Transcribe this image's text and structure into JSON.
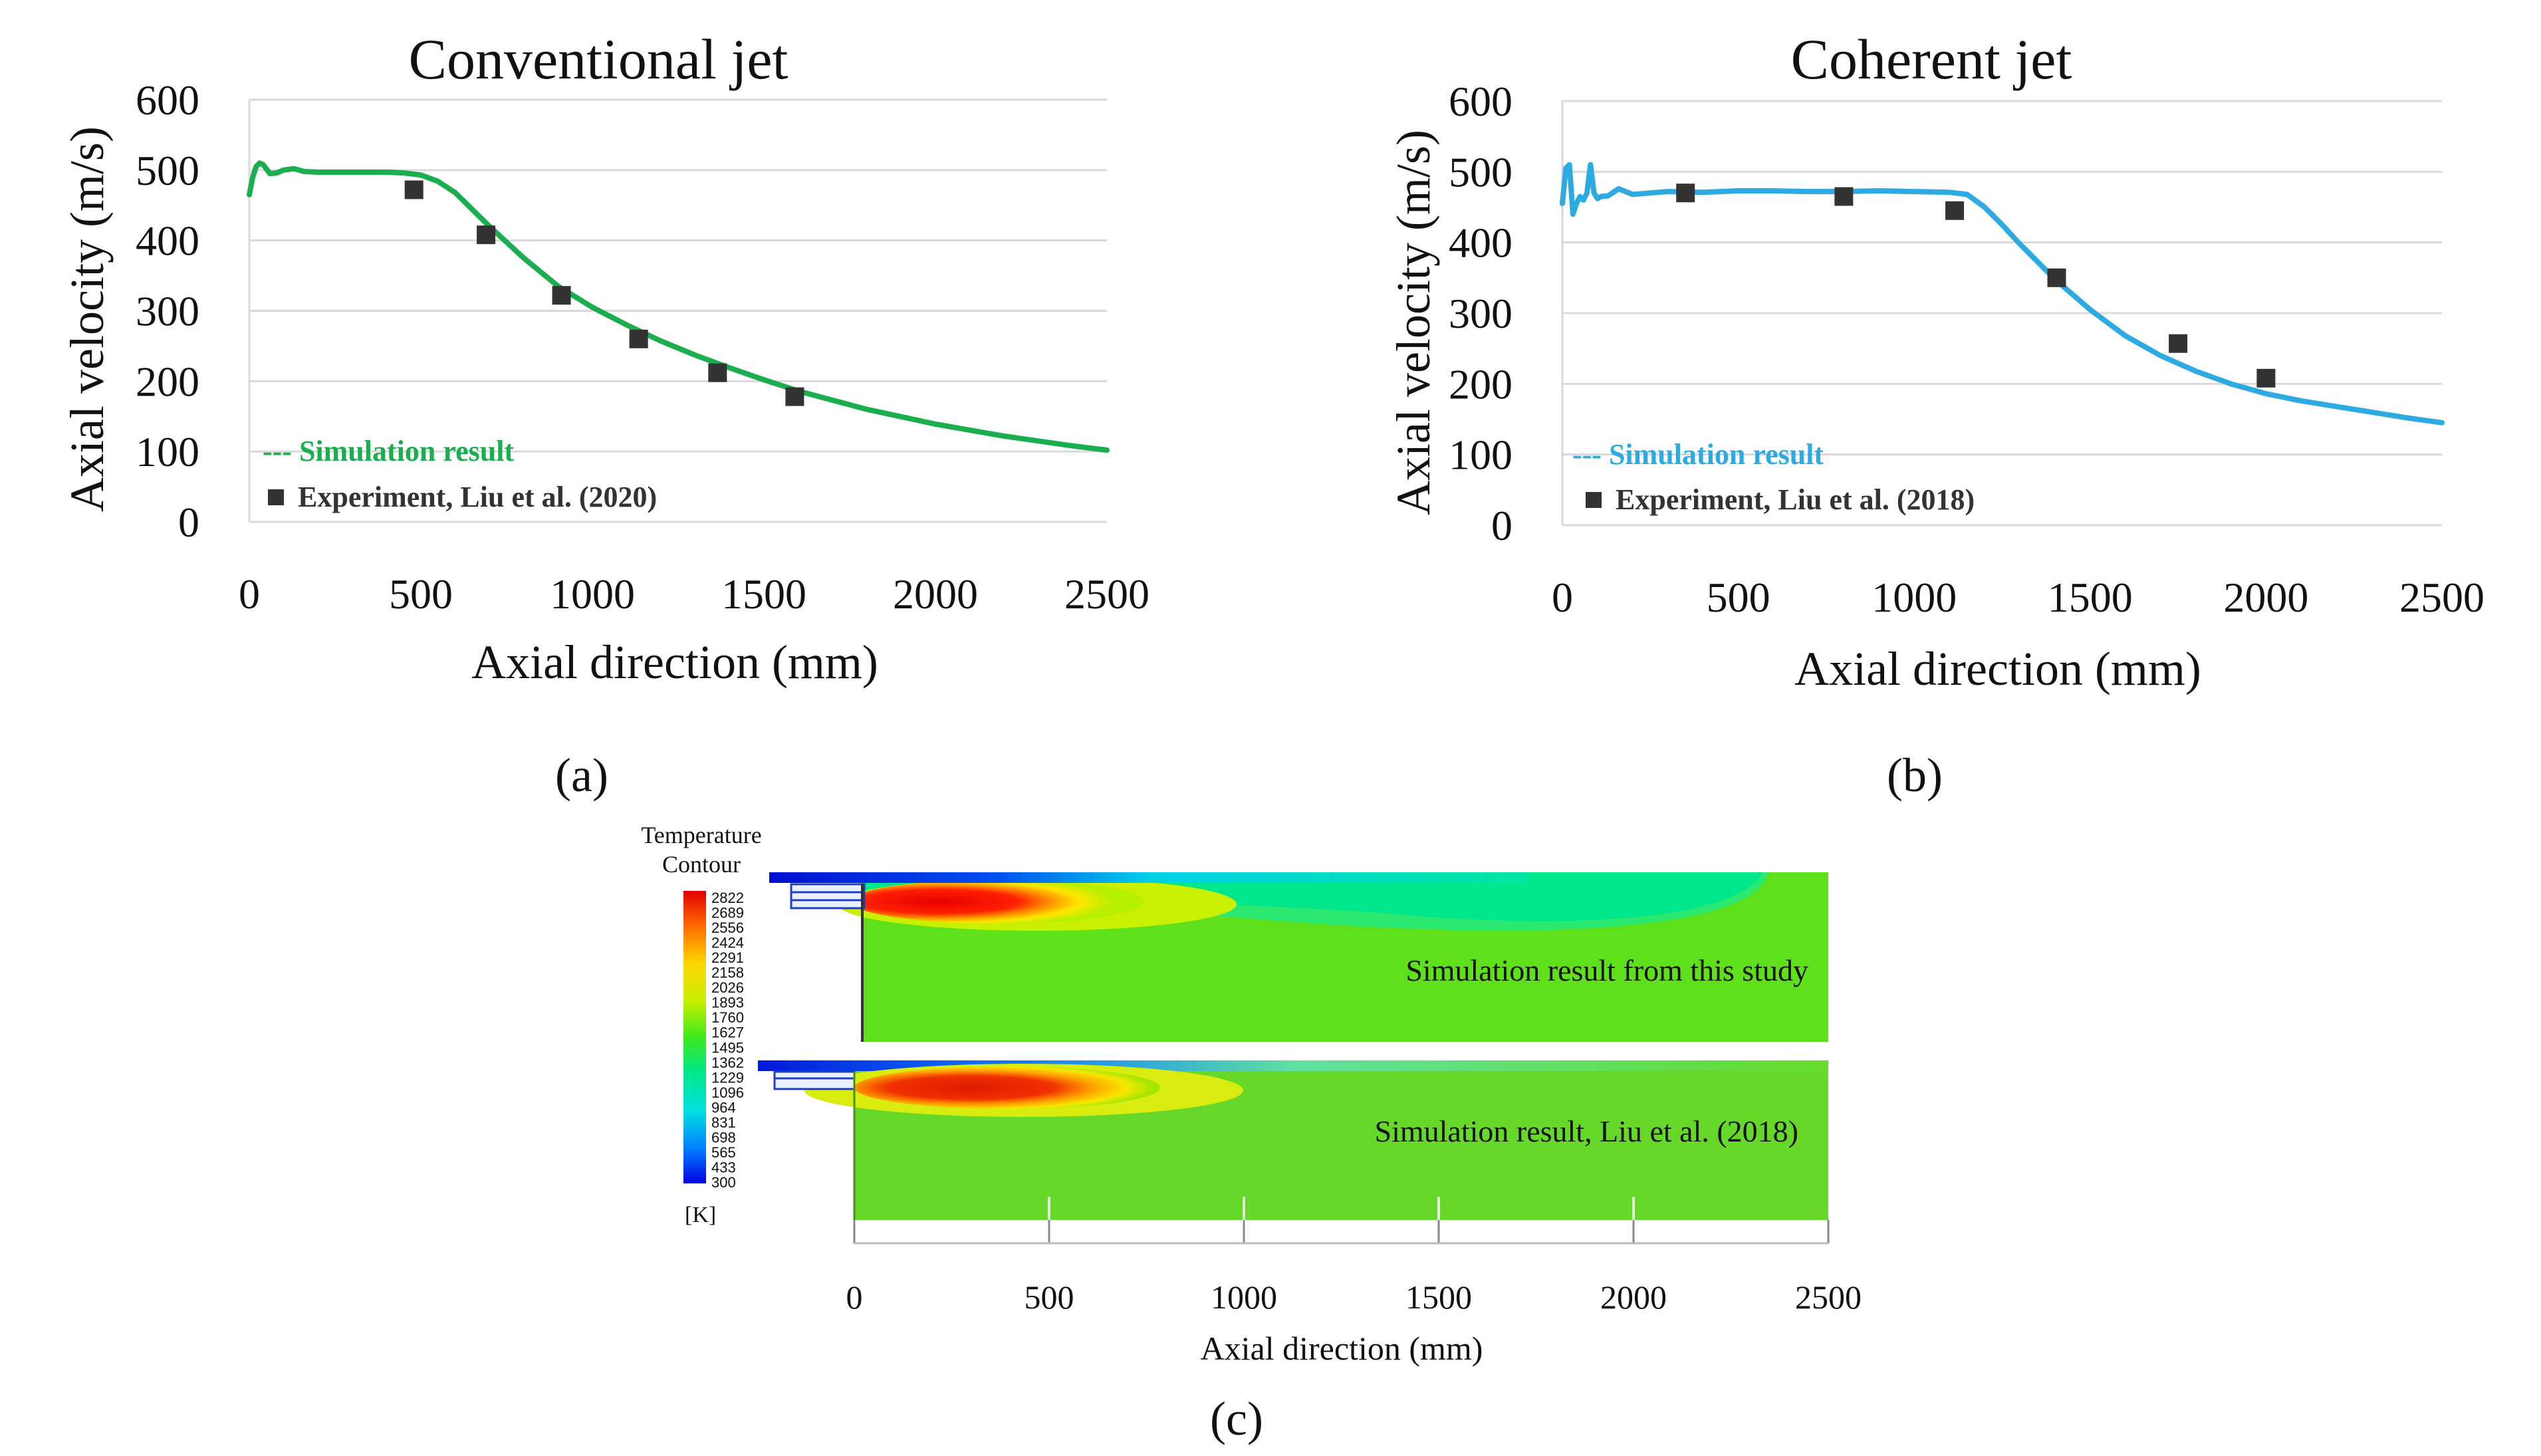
{
  "panel_labels": {
    "a": "(a)",
    "b": "(b)",
    "c": "(c)"
  },
  "chart_data": [
    {
      "id": "a",
      "type": "line",
      "title": "Conventional jet",
      "xlabel": "Axial direction (mm)",
      "ylabel": "Axial velocity (m/s)",
      "xlim": [
        0,
        2500
      ],
      "ylim": [
        0,
        600
      ],
      "xticks": [
        "0",
        "500",
        "1000",
        "1500",
        "2000",
        "2500"
      ],
      "yticks": [
        "0",
        "100",
        "200",
        "300",
        "400",
        "500",
        "600"
      ],
      "grid": "horizontal",
      "legend_placement": "bottom-left",
      "series": [
        {
          "name": "--- Simulation result",
          "kind": "line",
          "color": "#1aae4e",
          "x": [
            0,
            10,
            20,
            30,
            40,
            60,
            80,
            100,
            130,
            160,
            200,
            300,
            400,
            450,
            500,
            550,
            600,
            700,
            800,
            900,
            1000,
            1100,
            1200,
            1300,
            1400,
            1500,
            1600,
            1800,
            2000,
            2200,
            2400,
            2500
          ],
          "y": [
            465,
            490,
            505,
            510,
            508,
            495,
            496,
            500,
            502,
            498,
            497,
            497,
            497,
            496,
            493,
            484,
            468,
            420,
            375,
            335,
            305,
            280,
            257,
            237,
            219,
            202,
            186,
            160,
            139,
            122,
            108,
            102
          ]
        },
        {
          "name": "Experiment, Liu et al. (2020)",
          "kind": "marker",
          "color": "#333333",
          "x": [
            480,
            690,
            910,
            1135,
            1365,
            1590
          ],
          "y": [
            472,
            408,
            322,
            260,
            212,
            178
          ]
        }
      ]
    },
    {
      "id": "b",
      "type": "line",
      "title": "Coherent jet",
      "xlabel": "Axial direction (mm)",
      "ylabel": "Axial velocity (m/s)",
      "xlim": [
        0,
        2500
      ],
      "ylim": [
        0,
        600
      ],
      "xticks": [
        "0",
        "500",
        "1000",
        "1500",
        "2000",
        "2500"
      ],
      "yticks": [
        "0",
        "100",
        "200",
        "300",
        "400",
        "500",
        "600"
      ],
      "grid": "horizontal",
      "legend_placement": "bottom-left",
      "series": [
        {
          "name": "--- Simulation result",
          "kind": "line",
          "color": "#2eaae2",
          "x": [
            0,
            10,
            20,
            30,
            40,
            50,
            60,
            70,
            80,
            90,
            100,
            110,
            130,
            160,
            200,
            250,
            300,
            400,
            500,
            600,
            700,
            800,
            900,
            1000,
            1100,
            1150,
            1200,
            1250,
            1300,
            1400,
            1500,
            1600,
            1700,
            1800,
            1900,
            2000,
            2100,
            2200,
            2300,
            2400,
            2500
          ],
          "y": [
            455,
            505,
            510,
            440,
            455,
            465,
            460,
            470,
            510,
            470,
            462,
            465,
            466,
            476,
            468,
            470,
            472,
            471,
            473,
            473,
            472,
            472,
            473,
            472,
            471,
            468,
            450,
            425,
            398,
            348,
            305,
            268,
            240,
            218,
            200,
            186,
            176,
            168,
            160,
            152,
            145
          ]
        },
        {
          "name": "Experiment, Liu et al. (2018)",
          "kind": "marker",
          "color": "#333333",
          "x": [
            350,
            800,
            1115,
            1405,
            1750,
            2000
          ],
          "y": [
            470,
            465,
            445,
            350,
            257,
            208
          ]
        }
      ]
    },
    {
      "id": "c",
      "type": "heatmap",
      "xlabel": "Axial direction (mm)",
      "xlim": [
        0,
        2500
      ],
      "xticks": [
        "0",
        "500",
        "1000",
        "1500",
        "2000",
        "2500"
      ],
      "colorbar": {
        "title_line1": "Temperature",
        "title_line2": "Contour",
        "unit": "[K]",
        "levels": [
          "2822",
          "2689",
          "2556",
          "2424",
          "2291",
          "2158",
          "2026",
          "1893",
          "1760",
          "1627",
          "1495",
          "1362",
          "1229",
          "1096",
          "964",
          "831",
          "698",
          "565",
          "433",
          "300"
        ]
      },
      "panels": [
        {
          "label": "Simulation result from this study"
        },
        {
          "label": "Simulation result, Liu et al. (2018)"
        }
      ]
    }
  ]
}
